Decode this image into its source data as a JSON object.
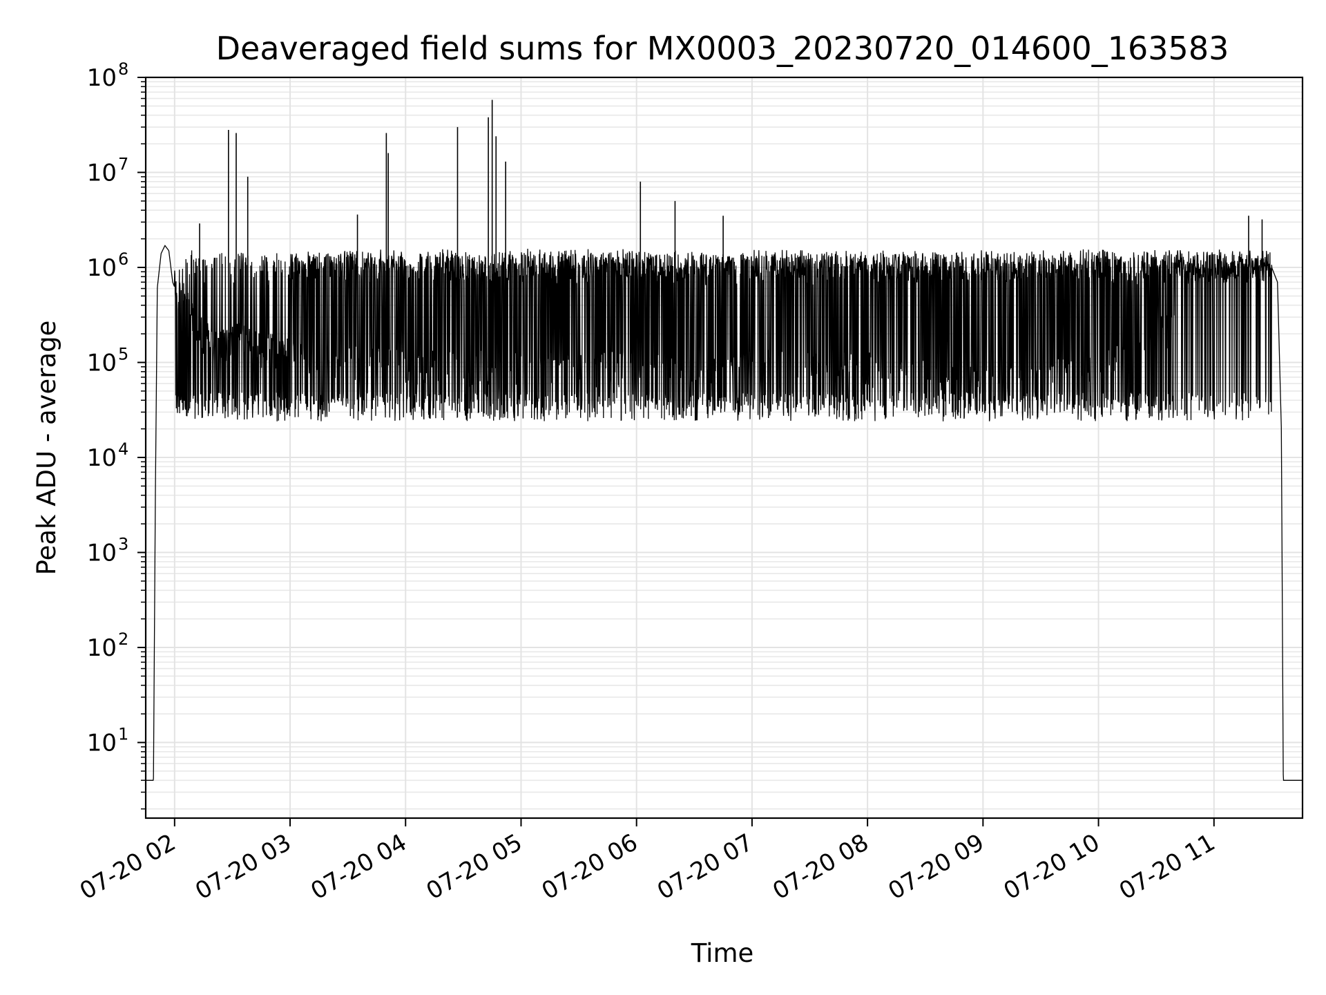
{
  "chart_data": {
    "type": "line",
    "title": "Deaveraged field sums for MX0003_20230720_014600_163583",
    "xlabel": "Time",
    "ylabel": "Peak ADU - average",
    "yscale": "log",
    "ylim": [
      1.6,
      100000000
    ],
    "xlim": [
      "07-20 01:45",
      "07-20 11:46"
    ],
    "grid": true,
    "x_tick_labels": [
      "07-20 02",
      "07-20 03",
      "07-20 04",
      "07-20 05",
      "07-20 06",
      "07-20 07",
      "07-20 08",
      "07-20 09",
      "07-20 10",
      "07-20 11"
    ],
    "y_tick_labels": [
      {
        "base": "10",
        "exp": "1"
      },
      {
        "base": "10",
        "exp": "2"
      },
      {
        "base": "10",
        "exp": "3"
      },
      {
        "base": "10",
        "exp": "4"
      },
      {
        "base": "10",
        "exp": "5"
      },
      {
        "base": "10",
        "exp": "6"
      },
      {
        "base": "10",
        "exp": "7"
      },
      {
        "base": "10",
        "exp": "8"
      }
    ],
    "series": [
      {
        "color": "#000000",
        "x": [
          "07-20 01:45",
          "07-20 01:49",
          "07-20 01:50",
          "07-20 01:51",
          "07-20 01:53",
          "07-20 01:55",
          "07-20 01:57",
          "07-20 01:59",
          "07-20 02:01",
          "07-20 02:05",
          "07-20 02:10",
          "07-20 02:15",
          "07-20 02:20",
          "07-20 02:25",
          "07-20 02:30",
          "07-20 02:40",
          "07-20 03:00",
          "07-20 03:30",
          "07-20 04:00",
          "07-20 04:30",
          "07-20 05:00",
          "07-20 05:30",
          "07-20 06:00",
          "07-20 06:30",
          "07-20 07:00",
          "07-20 07:30",
          "07-20 08:00",
          "07-20 08:30",
          "07-20 09:00",
          "07-20 09:30",
          "07-20 10:00",
          "07-20 10:30",
          "07-20 11:00",
          "07-20 11:10",
          "07-20 11:20",
          "07-20 11:25",
          "07-20 11:30",
          "07-20 11:33",
          "07-20 11:35",
          "07-20 11:36",
          "07-20 11:38",
          "07-20 11:40",
          "07-20 11:46"
        ],
        "y": [
          4,
          4,
          4000,
          600000,
          1400000,
          1700000,
          1500000,
          700000,
          550000,
          450000,
          300000,
          200000,
          150000,
          150000,
          200000,
          150000,
          120000,
          100000,
          90000,
          90000,
          85000,
          90000,
          90000,
          100000,
          100000,
          100000,
          90000,
          70000,
          60000,
          70000,
          80000,
          200000,
          400000,
          600000,
          800000,
          1000000,
          1000000,
          700000,
          20000,
          4,
          4,
          4,
          4
        ]
      }
    ],
    "spikes": [
      {
        "x": "07-20 02:28",
        "y": 28000000
      },
      {
        "x": "07-20 02:32",
        "y": 26000000
      },
      {
        "x": "07-20 02:38",
        "y": 9000000
      },
      {
        "x": "07-20 03:50",
        "y": 26000000
      },
      {
        "x": "07-20 03:51",
        "y": 16000000
      },
      {
        "x": "07-20 04:27",
        "y": 30000000
      },
      {
        "x": "07-20 04:43",
        "y": 38000000
      },
      {
        "x": "07-20 04:45",
        "y": 58000000
      },
      {
        "x": "07-20 04:47",
        "y": 24000000
      },
      {
        "x": "07-20 04:52",
        "y": 13000000
      },
      {
        "x": "07-20 06:02",
        "y": 8000000
      },
      {
        "x": "07-20 06:20",
        "y": 5000000
      },
      {
        "x": "07-20 06:45",
        "y": 3500000
      },
      {
        "x": "07-20 03:35",
        "y": 3600000
      },
      {
        "x": "07-20 02:13",
        "y": 2900000
      },
      {
        "x": "07-20 11:18",
        "y": 3500000
      },
      {
        "x": "07-20 11:25",
        "y": 3200000
      }
    ],
    "band": {
      "low": 40000,
      "high": 1500000
    }
  }
}
